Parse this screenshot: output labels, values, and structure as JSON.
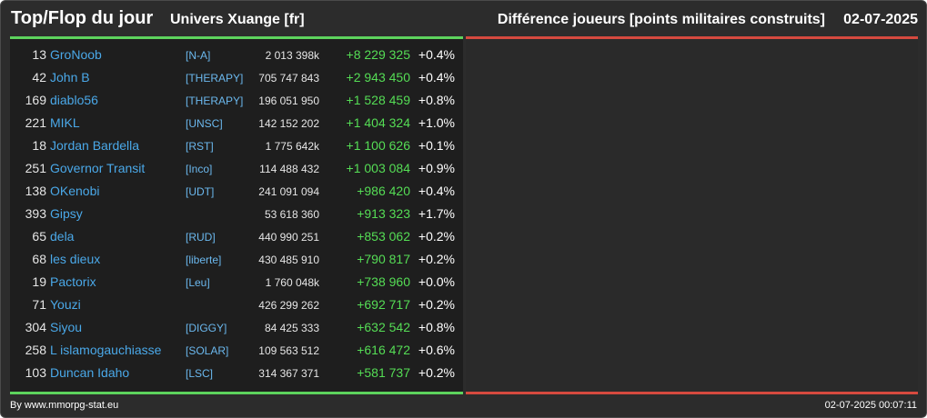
{
  "header": {
    "title": "Top/Flop du jour",
    "universe": "Univers Xuange [fr]",
    "metric": "Différence joueurs [points militaires construits]",
    "date": "02-07-2025"
  },
  "colors": {
    "background": "#2c2c2c",
    "panel": "#1e1e1e",
    "top_line": "#5dd35d",
    "flop_line": "#d64a3f",
    "player_name": "#4aa8e8",
    "positive_delta": "#55dd55"
  },
  "top": {
    "rows": [
      {
        "rank": "13",
        "name": "GroNoob",
        "alliance": "[N-A]",
        "points": "2 013 398k",
        "delta": "+8 229 325",
        "pct": "+0.4%"
      },
      {
        "rank": "42",
        "name": "John B",
        "alliance": "[THERAPY]",
        "points": "705 747 843",
        "delta": "+2 943 450",
        "pct": "+0.4%"
      },
      {
        "rank": "169",
        "name": "diablo56",
        "alliance": "[THERAPY]",
        "points": "196 051 950",
        "delta": "+1 528 459",
        "pct": "+0.8%"
      },
      {
        "rank": "221",
        "name": "MIKL",
        "alliance": "[UNSC]",
        "points": "142 152 202",
        "delta": "+1 404 324",
        "pct": "+1.0%"
      },
      {
        "rank": "18",
        "name": "Jordan Bardella",
        "alliance": "[RST]",
        "points": "1 775 642k",
        "delta": "+1 100 626",
        "pct": "+0.1%"
      },
      {
        "rank": "251",
        "name": "Governor Transit",
        "alliance": "[Inco]",
        "points": "114 488 432",
        "delta": "+1 003 084",
        "pct": "+0.9%"
      },
      {
        "rank": "138",
        "name": "OKenobi",
        "alliance": "[UDT]",
        "points": "241 091 094",
        "delta": "+986 420",
        "pct": "+0.4%"
      },
      {
        "rank": "393",
        "name": "Gipsy",
        "alliance": "",
        "points": "53 618 360",
        "delta": "+913 323",
        "pct": "+1.7%"
      },
      {
        "rank": "65",
        "name": "dela",
        "alliance": "[RUD]",
        "points": "440 990 251",
        "delta": "+853 062",
        "pct": "+0.2%"
      },
      {
        "rank": "68",
        "name": "les dieux",
        "alliance": "[liberte]",
        "points": "430 485 910",
        "delta": "+790 817",
        "pct": "+0.2%"
      },
      {
        "rank": "19",
        "name": "Pactorix",
        "alliance": "[Leu]",
        "points": "1 760 048k",
        "delta": "+738 960",
        "pct": "+0.0%"
      },
      {
        "rank": "71",
        "name": "Youzi",
        "alliance": "",
        "points": "426 299 262",
        "delta": "+692 717",
        "pct": "+0.2%"
      },
      {
        "rank": "304",
        "name": "Siyou",
        "alliance": "[DIGGY]",
        "points": "84 425 333",
        "delta": "+632 542",
        "pct": "+0.8%"
      },
      {
        "rank": "258",
        "name": "L islamogauchiasse",
        "alliance": "[SOLAR]",
        "points": "109 563 512",
        "delta": "+616 472",
        "pct": "+0.6%"
      },
      {
        "rank": "103",
        "name": "Duncan Idaho",
        "alliance": "[LSC]",
        "points": "314 367 371",
        "delta": "+581 737",
        "pct": "+0.2%"
      }
    ]
  },
  "footer": {
    "source": "By www.mmorpg-stat.eu",
    "timestamp": "02-07-2025 00:07:11"
  }
}
